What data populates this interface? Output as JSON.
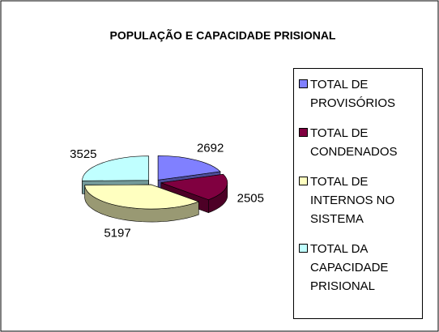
{
  "chart_data": {
    "type": "pie",
    "title": "POPULAÇÃO E CAPACIDADE PRISIONAL",
    "categories": [
      "TOTAL DE PROVISÓRIOS",
      "TOTAL DE CONDENADOS",
      "TOTAL DE INTERNOS NO SISTEMA",
      "TOTAL DA CAPACIDADE PRISIONAL"
    ],
    "values": [
      2692,
      2505,
      5197,
      3525
    ],
    "colors": [
      "#8080ff",
      "#800040",
      "#ffffc0",
      "#c0ffff"
    ],
    "legend": "right"
  }
}
